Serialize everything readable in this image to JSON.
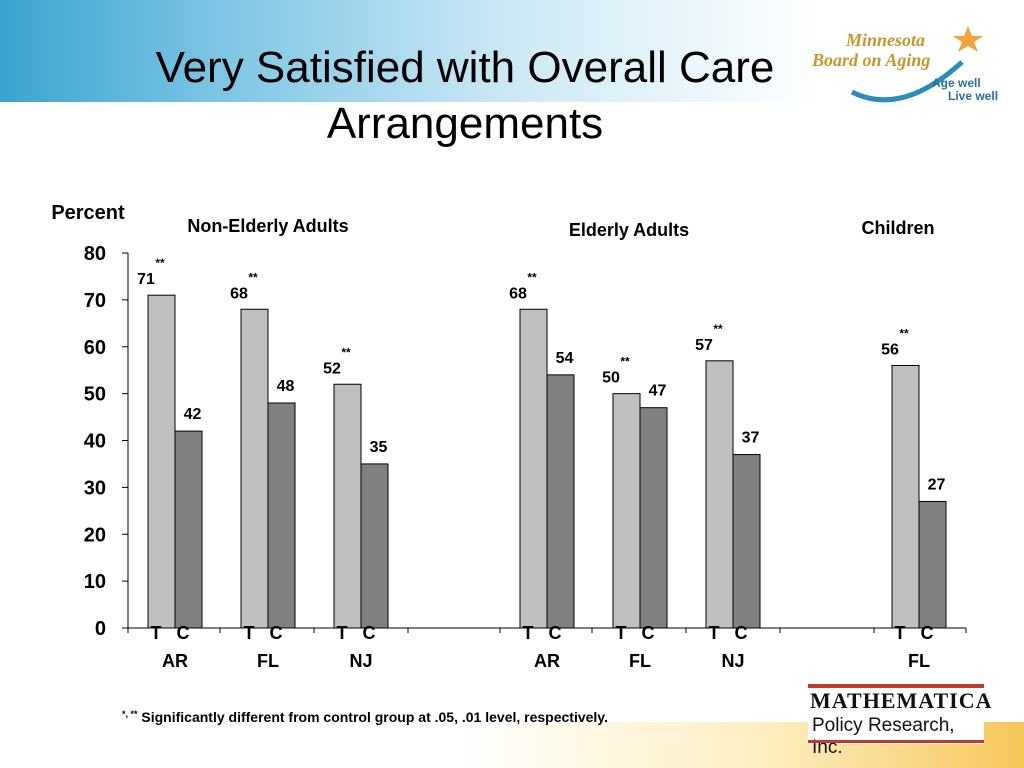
{
  "slide": {
    "title_line1": "Very Satisfied with Overall Care",
    "title_line2": "Arrangements",
    "footnote_marks": "*, **",
    "footnote": "Significantly different from control group at  .05, .01 level, respectively."
  },
  "logos": {
    "mba_line1": "Minnesota",
    "mba_line2": "Board on Aging",
    "mba_tag1": "Age well",
    "mba_tag2": "Live well",
    "mathematica_line1": "MATHEMATICA",
    "mathematica_line2": "Policy Research, Inc."
  },
  "colors": {
    "treatment": "#c0c0c0",
    "control": "#808080",
    "brand_blue": "#3aa3d0",
    "brand_gold": "#f6c65a",
    "mathematica_red": "#c0392b"
  },
  "chart_data": {
    "type": "bar",
    "ylabel": "Percent",
    "ylim": [
      0,
      80
    ],
    "yticks": [
      0,
      10,
      20,
      30,
      40,
      50,
      60,
      70,
      80
    ],
    "grid": false,
    "legend": "none",
    "group_labels": [
      "Non-Elderly Adults",
      "Elderly Adults",
      "Children"
    ],
    "series": [
      {
        "name": "T",
        "values": [
          71,
          68,
          52,
          68,
          50,
          57,
          56
        ]
      },
      {
        "name": "C",
        "values": [
          42,
          48,
          35,
          54,
          47,
          37,
          27
        ]
      }
    ],
    "categories": [
      "AR",
      "FL",
      "NJ",
      "AR",
      "FL",
      "NJ",
      "FL"
    ],
    "category_groups": [
      0,
      0,
      0,
      1,
      1,
      1,
      2
    ],
    "significance": [
      "**",
      "**",
      "**",
      "**",
      "**",
      "**",
      "**"
    ]
  }
}
